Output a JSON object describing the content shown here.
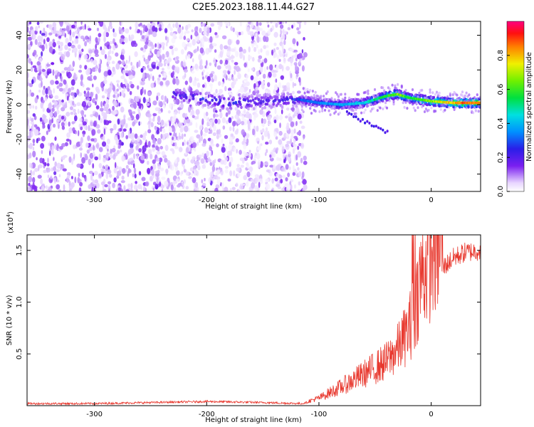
{
  "title": "C2E5.2023.188.11.44.G27",
  "chart_data": [
    {
      "type": "heatmap",
      "xlabel": "Height of straight line (km)",
      "ylabel": "Frequency (Hz)",
      "xlim": [
        -360,
        44
      ],
      "ylim": [
        -50,
        48
      ],
      "xticks": [
        -300,
        -200,
        -100,
        0
      ],
      "yticks": [
        -40,
        -20,
        0,
        20,
        40
      ],
      "colorbar": {
        "label": "Normalized spectral amplitude",
        "ticks": [
          0.0,
          0.2,
          0.4,
          0.6,
          0.8
        ],
        "range": [
          0,
          1
        ]
      },
      "ridge": {
        "x": [
          -230,
          -210,
          -180,
          -140,
          -118,
          -100,
          -80,
          -60,
          -40,
          -30,
          -20,
          0,
          20,
          44
        ],
        "y": [
          6,
          4,
          1,
          2,
          3,
          1,
          0,
          1,
          5,
          6,
          4,
          2,
          1,
          1
        ],
        "amplitude": [
          0.25,
          0.3,
          0.3,
          0.25,
          0.3,
          0.35,
          0.4,
          0.45,
          0.6,
          0.7,
          0.6,
          0.7,
          0.85,
          0.95
        ]
      }
    },
    {
      "type": "line",
      "xlabel": "Height of straight line (km)",
      "ylabel": "SNR (10 * v/v)",
      "multiplier": "(x10^4)",
      "xlim": [
        -360,
        44
      ],
      "ylim": [
        0,
        1.65
      ],
      "xticks": [
        -300,
        -200,
        -100,
        0
      ],
      "yticks": [
        0.5,
        1.0,
        1.5
      ],
      "color": "#e8392f",
      "series": [
        {
          "x": [
            -360,
            -300,
            -250,
            -200,
            -150,
            -115,
            -100,
            -80,
            -60,
            -40,
            -30,
            -20,
            -15,
            -10,
            0,
            10,
            20,
            30,
            44
          ],
          "y": [
            0.02,
            0.02,
            0.03,
            0.04,
            0.03,
            0.02,
            0.06,
            0.15,
            0.25,
            0.35,
            0.45,
            0.6,
            0.75,
            1.0,
            1.2,
            1.35,
            1.45,
            1.5,
            1.52
          ]
        }
      ]
    }
  ]
}
